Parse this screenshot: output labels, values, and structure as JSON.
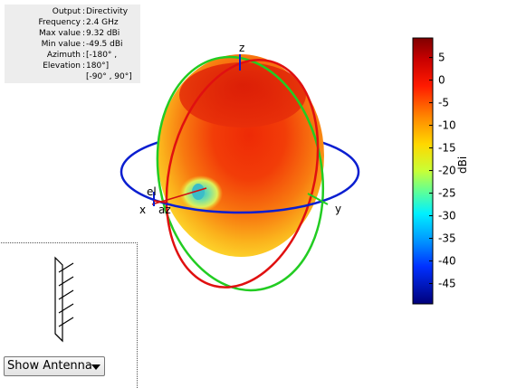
{
  "info": {
    "rows": [
      {
        "key": "Output",
        "value": "Directivity"
      },
      {
        "key": "Frequency",
        "value": "2.4 GHz"
      },
      {
        "key": "Max value",
        "value": "9.32 dBi"
      },
      {
        "key": "Min value",
        "value": "-49.5 dBi"
      },
      {
        "key": "Azimuth",
        "value": "[-180° ,"
      },
      {
        "key": "Elevation",
        "value": "180°]"
      }
    ],
    "extra": "[-90° , 90°]"
  },
  "axes": {
    "z": "z",
    "x": "x",
    "y": "y",
    "el": "el",
    "az": "az"
  },
  "colorbar": {
    "unit": "dBi",
    "ticks": [
      "5",
      "0",
      "-5",
      "-10",
      "-15",
      "-20",
      "-25",
      "-30",
      "-35",
      "-40",
      "-45"
    ],
    "max": 9.32,
    "min": -49.5
  },
  "control": {
    "label": "Show Antenna"
  },
  "colors": {
    "elevation_ring_red": "#e01010",
    "elevation_ring_green": "#22cc22",
    "azimuth_ring_blue": "#0a1ed0"
  }
}
